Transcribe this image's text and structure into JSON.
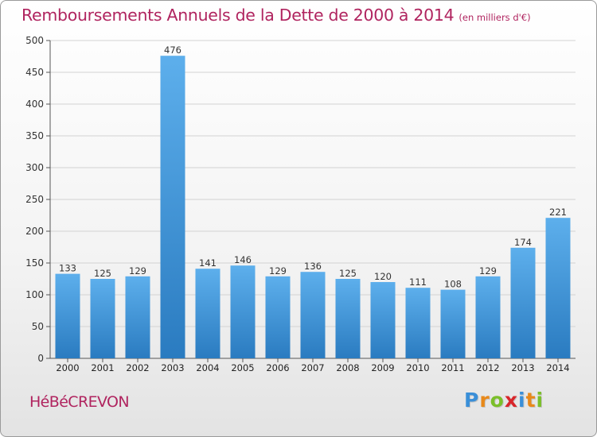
{
  "title": "Remboursements Annuels de la Dette de 2000 à 2014",
  "unit": "(en milliers d'€)",
  "town": "HéBéCREVON",
  "logo": {
    "letters": [
      "P",
      "r",
      "o",
      "x",
      "i",
      "t",
      "i"
    ],
    "colors": [
      "#3a8fd8",
      "#e8891a",
      "#7bbf2a",
      "#d8262b",
      "#3a8fd8",
      "#e8891a",
      "#7bbf2a"
    ]
  },
  "colors": {
    "title": "#b0245f",
    "bar_top": "#5dafec",
    "bar_bottom": "#2a7bc0",
    "grid": "#d2d2d2"
  },
  "chart_data": {
    "type": "bar",
    "title": "Remboursements Annuels de la Dette de 2000 à 2014",
    "subtitle": "(en milliers d'€)",
    "xlabel": "",
    "ylabel": "",
    "categories": [
      "2000",
      "2001",
      "2002",
      "2003",
      "2004",
      "2005",
      "2006",
      "2007",
      "2008",
      "2009",
      "2010",
      "2011",
      "2012",
      "2013",
      "2014"
    ],
    "values": [
      133,
      125,
      129,
      476,
      141,
      146,
      129,
      136,
      125,
      120,
      111,
      108,
      129,
      174,
      221
    ],
    "ylim": [
      0,
      500
    ],
    "yticks": [
      0,
      50,
      100,
      150,
      200,
      250,
      300,
      350,
      400,
      450,
      500
    ],
    "grid": true,
    "legend": "none"
  }
}
